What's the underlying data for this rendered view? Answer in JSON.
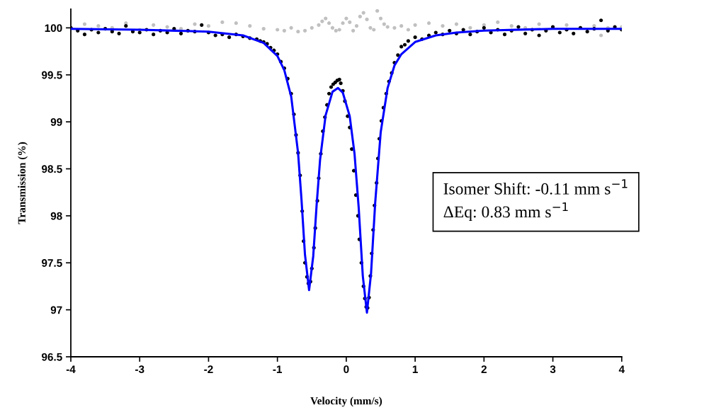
{
  "chart_data": {
    "type": "scatter",
    "xlabel": "Velocity (mm/s)",
    "ylabel": "Transmission (%)",
    "xlim": [
      -4,
      4
    ],
    "xticks": [
      -4,
      -3,
      -2,
      -1,
      0,
      1,
      2,
      3,
      4
    ],
    "ylim": [
      96.5,
      100.2
    ],
    "yticks": [
      96.5,
      97,
      97.5,
      98,
      98.5,
      99,
      99.5,
      100
    ],
    "grid": false,
    "annotations": [
      "Isomer Shift: -0.11 mm s$^{−1}$",
      "ΔEq: 0.83 mm s$^{−1}$"
    ],
    "series": [
      {
        "marker": "circle",
        "color": "#c0c0c0",
        "x": [
          -4.0,
          -3.8,
          -3.6,
          -3.4,
          -3.2,
          -3.0,
          -2.8,
          -2.6,
          -2.4,
          -2.2,
          -2.0,
          -1.8,
          -1.6,
          -1.4,
          -1.2,
          -1.0,
          -0.9,
          -0.8,
          -0.7,
          -0.6,
          -0.5,
          -0.4,
          -0.35,
          -0.3,
          -0.25,
          -0.2,
          -0.15,
          -0.1,
          -0.05,
          0.0,
          0.05,
          0.1,
          0.15,
          0.2,
          0.25,
          0.3,
          0.35,
          0.4,
          0.45,
          0.5,
          0.55,
          0.6,
          0.7,
          0.8,
          0.9,
          1.0,
          1.2,
          1.4,
          1.6,
          1.8,
          2.0,
          2.2,
          2.4,
          2.6,
          2.8,
          3.0,
          3.2,
          3.4,
          3.6,
          3.7,
          3.8,
          4.0
        ],
        "values": [
          100.0,
          100.04,
          100.02,
          100.0,
          100.05,
          99.98,
          100.03,
          100.01,
          99.99,
          100.04,
          100.02,
          100.06,
          100.05,
          100.02,
          99.99,
          99.98,
          99.97,
          100.0,
          99.96,
          99.97,
          100.0,
          100.03,
          100.07,
          100.1,
          100.05,
          100.0,
          99.97,
          99.98,
          100.05,
          100.1,
          100.06,
          99.97,
          100.02,
          100.12,
          100.16,
          100.09,
          100.0,
          99.98,
          100.18,
          100.1,
          100.04,
          100.01,
          100.0,
          100.02,
          99.98,
          100.03,
          100.05,
          100.02,
          100.04,
          100.0,
          100.03,
          100.06,
          100.02,
          100.0,
          100.04,
          100.01,
          100.03,
          100.0,
          100.02,
          99.92,
          100.0,
          100.01
        ]
      },
      {
        "marker": "circle",
        "color": "#000000",
        "x": [
          -4.0,
          -3.9,
          -3.8,
          -3.7,
          -3.6,
          -3.5,
          -3.4,
          -3.3,
          -3.2,
          -3.1,
          -3.0,
          -2.9,
          -2.8,
          -2.7,
          -2.6,
          -2.5,
          -2.4,
          -2.3,
          -2.2,
          -2.1,
          -2.0,
          -1.9,
          -1.8,
          -1.7,
          -1.6,
          -1.5,
          -1.4,
          -1.3,
          -1.25,
          -1.2,
          -1.15,
          -1.1,
          -1.05,
          -1.0,
          -0.95,
          -0.9,
          -0.85,
          -0.8,
          -0.76,
          -0.73,
          -0.7,
          -0.67,
          -0.64,
          -0.62,
          -0.6,
          -0.57,
          -0.55,
          -0.52,
          -0.5,
          -0.47,
          -0.45,
          -0.42,
          -0.4,
          -0.37,
          -0.34,
          -0.31,
          -0.28,
          -0.25,
          -0.22,
          -0.19,
          -0.16,
          -0.13,
          -0.1,
          -0.08,
          -0.05,
          -0.02,
          0.02,
          0.05,
          0.08,
          0.11,
          0.14,
          0.17,
          0.19,
          0.22,
          0.25,
          0.27,
          0.29,
          0.31,
          0.33,
          0.35,
          0.37,
          0.39,
          0.41,
          0.44,
          0.46,
          0.48,
          0.51,
          0.54,
          0.58,
          0.62,
          0.66,
          0.7,
          0.75,
          0.8,
          0.85,
          0.9,
          1.0,
          1.1,
          1.2,
          1.3,
          1.4,
          1.5,
          1.6,
          1.7,
          1.8,
          1.9,
          2.0,
          2.1,
          2.2,
          2.3,
          2.4,
          2.5,
          2.6,
          2.7,
          2.8,
          2.9,
          3.0,
          3.1,
          3.2,
          3.3,
          3.4,
          3.5,
          3.6,
          3.7,
          3.8,
          3.9,
          4.0
        ],
        "values": [
          100.0,
          99.97,
          99.93,
          99.98,
          99.95,
          99.99,
          99.96,
          99.94,
          100.02,
          99.96,
          99.95,
          99.98,
          99.93,
          99.97,
          99.95,
          99.99,
          99.94,
          99.97,
          99.96,
          100.03,
          99.95,
          99.92,
          99.93,
          99.9,
          99.93,
          99.91,
          99.89,
          99.88,
          99.86,
          99.85,
          99.83,
          99.79,
          99.76,
          99.72,
          99.64,
          99.57,
          99.46,
          99.3,
          99.08,
          98.86,
          98.67,
          98.43,
          98.05,
          97.73,
          97.5,
          97.35,
          97.28,
          97.3,
          97.44,
          97.66,
          97.87,
          98.16,
          98.4,
          98.66,
          98.9,
          99.05,
          99.18,
          99.3,
          99.37,
          99.4,
          99.42,
          99.44,
          99.45,
          99.41,
          99.33,
          99.22,
          99.06,
          98.94,
          98.71,
          98.48,
          98.22,
          98.0,
          97.75,
          97.5,
          97.25,
          97.12,
          97.03,
          97.02,
          97.13,
          97.36,
          97.6,
          97.85,
          98.11,
          98.35,
          98.61,
          98.82,
          99.01,
          99.15,
          99.3,
          99.43,
          99.52,
          99.63,
          99.71,
          99.8,
          99.82,
          99.86,
          99.9,
          99.88,
          99.92,
          99.95,
          99.93,
          99.97,
          99.94,
          99.98,
          99.93,
          99.96,
          100.0,
          99.95,
          99.98,
          99.93,
          99.97,
          100.01,
          99.94,
          99.98,
          99.92,
          99.97,
          100.01,
          99.95,
          99.98,
          99.94,
          100.0,
          99.96,
          99.99,
          100.08,
          99.97,
          100.01,
          99.98
        ]
      },
      {
        "type": "line",
        "marker": "none",
        "color": "#0000ff",
        "x": [
          -4,
          -3,
          -2,
          -1.5,
          -1.2,
          -1.0,
          -0.9,
          -0.8,
          -0.7,
          -0.65,
          -0.6,
          -0.54,
          -0.48,
          -0.43,
          -0.38,
          -0.3,
          -0.2,
          -0.12,
          -0.05,
          0.05,
          0.12,
          0.18,
          0.24,
          0.3,
          0.36,
          0.42,
          0.5,
          0.6,
          0.7,
          0.8,
          1.0,
          1.3,
          1.6,
          2,
          3,
          4
        ],
        "values": [
          99.99,
          99.98,
          99.96,
          99.92,
          99.84,
          99.7,
          99.55,
          99.27,
          98.67,
          98.17,
          97.59,
          97.21,
          97.57,
          98.12,
          98.6,
          99.07,
          99.32,
          99.36,
          99.31,
          99.06,
          98.66,
          98.09,
          97.36,
          96.97,
          97.39,
          98.14,
          98.89,
          99.36,
          99.6,
          99.72,
          99.85,
          99.92,
          99.95,
          99.97,
          99.99,
          99.99
        ]
      }
    ]
  }
}
